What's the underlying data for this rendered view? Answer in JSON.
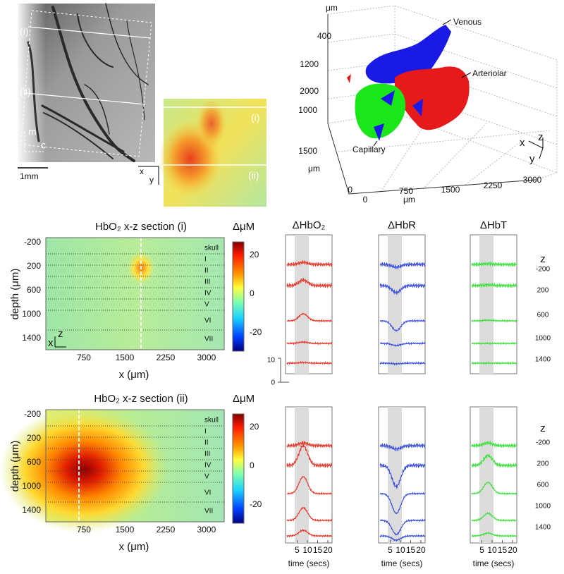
{
  "photo": {
    "region_labels": [
      "(i)",
      "(ii)"
    ],
    "axis_labels": [
      "m",
      "c"
    ],
    "scale_bar": "1mm"
  },
  "inset": {
    "region_labels": [
      "(i)",
      "(ii)"
    ],
    "axis_labels": [
      "x",
      "y"
    ]
  },
  "render3d": {
    "units": [
      "μm",
      "μm",
      "μm"
    ],
    "z_ticks": [
      400,
      1200,
      2000
    ],
    "y_ticks": [
      1000,
      1500
    ],
    "y_origin": 0,
    "x_ticks": [
      0,
      750,
      1500,
      2250,
      3000
    ],
    "vessels": [
      "Venous",
      "Arteriolar",
      "Capillary"
    ],
    "axis_labels": [
      "x",
      "z",
      "y"
    ]
  },
  "sections": [
    {
      "title": "HbO₂ x-z section (i)",
      "y_label": "depth (μm)",
      "x_label": "x (μm)",
      "y_ticks": [
        -200,
        200,
        600,
        1000,
        1400
      ],
      "x_ticks": [
        750,
        1500,
        2250,
        3000
      ],
      "layers": [
        "skull",
        "I",
        "II",
        "III",
        "IV",
        "V",
        "VI",
        "VII"
      ],
      "corner_axes": [
        "x",
        "z"
      ],
      "colorbar": {
        "label": "ΔμM",
        "ticks": [
          20,
          0,
          -20
        ]
      },
      "depth_label": "z",
      "depths": [
        -200,
        200,
        600,
        1000,
        1400
      ]
    },
    {
      "title": "HbO₂ x-z section (ii)",
      "y_label": "depth (μm)",
      "x_label": "x (μm)",
      "y_ticks": [
        -200,
        200,
        600,
        1000,
        1400
      ],
      "x_ticks": [
        750,
        1500,
        2250,
        3000
      ],
      "layers": [
        "skull",
        "I",
        "II",
        "III",
        "IV",
        "V",
        "VI",
        "VII"
      ],
      "colorbar": {
        "label": "ΔμM",
        "ticks": [
          20,
          0,
          -20
        ]
      },
      "depth_label": "z",
      "depths": [
        -200,
        200,
        600,
        1000,
        1400
      ]
    }
  ],
  "trace_headers": [
    "ΔHbO₂",
    "ΔHbR",
    "ΔHbT"
  ],
  "scale_bar": [
    10,
    0
  ],
  "time_axis": {
    "ticks": [
      5,
      10,
      15,
      20
    ],
    "label": "time (secs)"
  }
}
